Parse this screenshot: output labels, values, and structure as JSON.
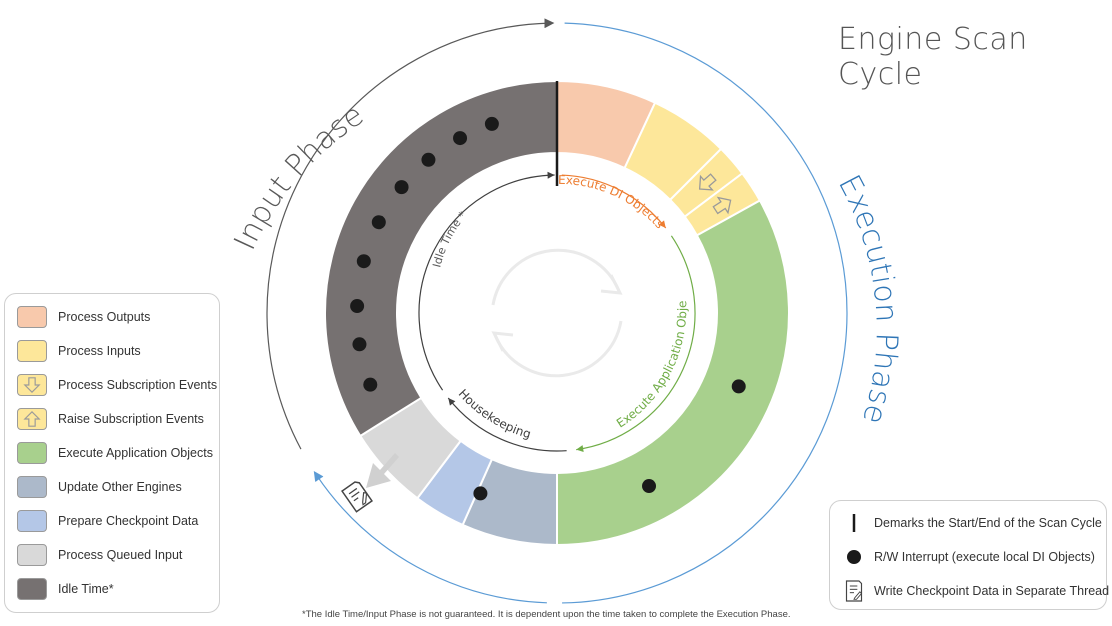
{
  "title": "Engine Scan Cycle",
  "phases": {
    "input": "Input Phase",
    "execution": "Execution Phase"
  },
  "arc_labels": {
    "execute_di_objects": "Execute DI Objects",
    "execute_application_objects": "Execute Application Objects",
    "housekeeping": "Housekeeping",
    "idle_time": "Idle Time *"
  },
  "colors": {
    "process_outputs": "#f8c9ac",
    "process_inputs": "#fde79a",
    "execute_application_objects": "#a8d08d",
    "update_other_engines": "#acb9ca",
    "prepare_checkpoint_data": "#b4c7e7",
    "process_queued_input": "#d9d9d9",
    "idle_time": "#767171",
    "input_phase_arrow": "#595959",
    "execution_phase_arrow": "#5b9bd5",
    "di_arc": "#ed7d31",
    "app_arc": "#70ad47",
    "inner_arc": "#404040"
  },
  "legend": [
    {
      "label": "Process Outputs",
      "color": "#f8c9ac",
      "icon": ""
    },
    {
      "label": "Process Inputs",
      "color": "#fde79a",
      "icon": ""
    },
    {
      "label": "Process Subscription Events",
      "color": "#fde79a",
      "icon": "arrow-down-icon"
    },
    {
      "label": "Raise Subscription Events",
      "color": "#fde79a",
      "icon": "arrow-up-icon"
    },
    {
      "label": "Execute Application Objects",
      "color": "#a8d08d",
      "icon": ""
    },
    {
      "label": "Update Other Engines",
      "color": "#acb9ca",
      "icon": ""
    },
    {
      "label": "Prepare Checkpoint Data",
      "color": "#b4c7e7",
      "icon": ""
    },
    {
      "label": "Process Queued Input",
      "color": "#d9d9d9",
      "icon": ""
    },
    {
      "label": "Idle Time*",
      "color": "#767171",
      "icon": ""
    }
  ],
  "key": [
    {
      "label": "Demarks the Start/End of the Scan Cycle",
      "icon": "start-end-marker-icon"
    },
    {
      "label": "R/W Interrupt (execute local DI Objects)",
      "icon": "interrupt-dot-icon"
    },
    {
      "label": "Write Checkpoint Data in Separate Thread",
      "icon": "checkpoint-document-icon"
    }
  ],
  "footnote": "*The Idle Time/Input Phase is not guaranteed. It is dependent upon the time taken to complete the Execution Phase."
}
